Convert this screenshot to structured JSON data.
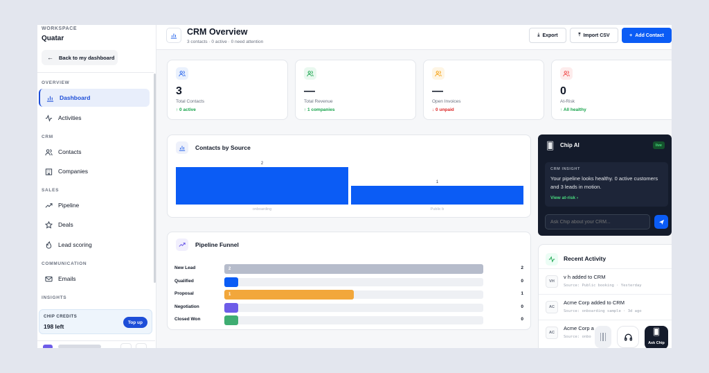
{
  "sidebar": {
    "workspace_label": "WORKSPACE",
    "workspace_name": "Quatar",
    "back_label": "Back to my dashboard",
    "sections": {
      "overview": "OVERVIEW",
      "crm": "CRM",
      "sales": "SALES",
      "communication": "COMMUNICATION",
      "insights": "INSIGHTS"
    },
    "items": [
      {
        "label": "Dashboard",
        "icon": "bar-chart-icon",
        "active": true
      },
      {
        "label": "Activities",
        "icon": "activity-icon"
      },
      {
        "label": "Contacts",
        "icon": "users-icon"
      },
      {
        "label": "Companies",
        "icon": "building-icon"
      },
      {
        "label": "Pipeline",
        "icon": "trend-icon"
      },
      {
        "label": "Deals",
        "icon": "star-icon"
      },
      {
        "label": "Lead scoring",
        "icon": "flame-icon"
      },
      {
        "label": "Emails",
        "icon": "mail-icon"
      }
    ],
    "credits": {
      "label": "CHIP CREDITS",
      "value": "198 left",
      "button": "Top up"
    }
  },
  "header": {
    "title": "CRM Overview",
    "subtitle": "3 contacts · 0 active · 0 need attention",
    "export_label": "Export",
    "import_label": "Import CSV",
    "add_label": "Add Contact"
  },
  "stats": [
    {
      "value": "3",
      "label": "Total Contacts",
      "sub": "↑ 0 active",
      "sub_color": "#16a34a",
      "icon": "users-icon",
      "icon_color": "#2563eb",
      "icon_bg": "#eaf1fd"
    },
    {
      "value": "—",
      "label": "Total Revenue",
      "sub": "↑ 1 companies",
      "sub_color": "#16a34a",
      "icon": "users-icon",
      "icon_color": "#16a34a",
      "icon_bg": "#e9f8ef"
    },
    {
      "value": "—",
      "label": "Open Invoices",
      "sub": "↓ 0 unpaid",
      "sub_color": "#dc2626",
      "icon": "users-icon",
      "icon_color": "#f59e0b",
      "icon_bg": "#fef5e4"
    },
    {
      "value": "0",
      "label": "At-Risk",
      "sub": "↑ All healthy",
      "sub_color": "#16a34a",
      "icon": "users-icon",
      "icon_color": "#ef4444",
      "icon_bg": "#fdecec"
    }
  ],
  "contacts_by_source": {
    "title": "Contacts by Source"
  },
  "chart_data": {
    "type": "bar",
    "title": "Contacts by Source",
    "categories": [
      "onboarding",
      "Public b"
    ],
    "values": [
      2,
      1
    ],
    "ylim": [
      0,
      2
    ],
    "color": "#0b5cf5",
    "grid": false
  },
  "pipeline_funnel": {
    "title": "Pipeline Funnel",
    "stages": [
      {
        "label": "New Lead",
        "count": 2,
        "bar_text": "2",
        "color": "#b6bccb",
        "fraction": 1.0
      },
      {
        "label": "Qualified",
        "count": 0,
        "bar_text": "",
        "color": "#0b5cf5",
        "fraction": 0.0
      },
      {
        "label": "Proposal",
        "count": 1,
        "bar_text": "1",
        "color": "#f2a73b",
        "fraction": 0.5
      },
      {
        "label": "Negotiation",
        "count": 0,
        "bar_text": "",
        "color": "#6d5ce8",
        "fraction": 0.0
      },
      {
        "label": "Closed Won",
        "count": 0,
        "bar_text": "",
        "color": "#3fad72",
        "fraction": 0.0
      }
    ]
  },
  "chip_ai": {
    "title": "Chip AI",
    "badge": "live",
    "insight_label": "CRM INSIGHT",
    "insight_text": "Your pipeline looks healthy. 0 active customers and 3 leads in motion.",
    "link": "View at-risk  ›",
    "input_placeholder": "Ask Chip about your CRM..."
  },
  "recent_activity": {
    "title": "Recent Activity",
    "items": [
      {
        "initials": "VH",
        "text": "v h added to CRM",
        "meta": "Source: Public booking · Yesterday"
      },
      {
        "initials": "AC",
        "text": "Acme Corp added to CRM",
        "meta": "Source: onboarding sample · 3d ago"
      },
      {
        "initials": "AC",
        "text": "Acme Corp a",
        "meta": "Source: onbo"
      }
    ]
  },
  "dock": {
    "ask_label": "Ask Chip"
  }
}
